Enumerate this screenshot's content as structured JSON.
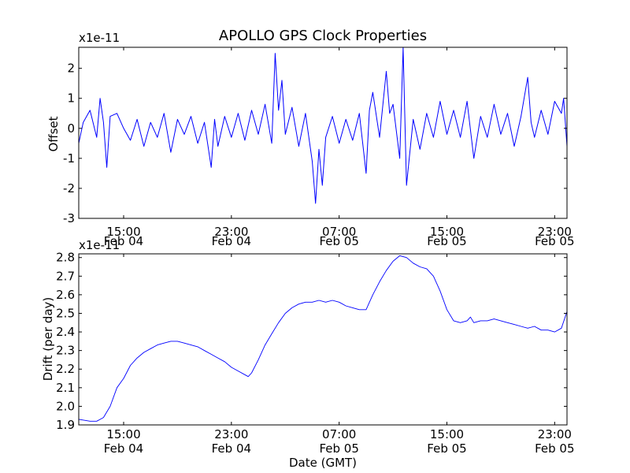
{
  "title": "APOLLO GPS Clock Properties",
  "xlabel": "Date (GMT)",
  "colors": {
    "series": "#0000ff",
    "axes": "#000000",
    "background": "#ffffff"
  },
  "chart_data": [
    {
      "type": "line",
      "title": "APOLLO GPS Clock Properties",
      "ylabel": "Offset",
      "multiplier_label": "x1e-11",
      "ylim": [
        -3,
        2.7
      ],
      "yticks": [
        {
          "value": -3,
          "label": "-3"
        },
        {
          "value": -2,
          "label": "-2"
        },
        {
          "value": -1,
          "label": "-1"
        },
        {
          "value": 0,
          "label": "0"
        },
        {
          "value": 1,
          "label": "1"
        },
        {
          "value": 2,
          "label": "2"
        }
      ],
      "xlim": [
        "Feb 04 11:40",
        "Feb 05 23:55"
      ],
      "xticks": [
        {
          "value": "Feb 04 15:00",
          "time": "15:00",
          "date": "Feb 04"
        },
        {
          "value": "Feb 04 23:00",
          "time": "23:00",
          "date": "Feb 04"
        },
        {
          "value": "Feb 05 07:00",
          "time": "07:00",
          "date": "Feb 05"
        },
        {
          "value": "Feb 05 15:00",
          "time": "15:00",
          "date": "Feb 05"
        },
        {
          "value": "Feb 05 23:00",
          "time": "23:00",
          "date": "Feb 05"
        }
      ],
      "series": [
        {
          "color": "#0000ff",
          "style": "dense noisy trace, values read off the plot",
          "points": [
            [
              "Feb 04 11:40",
              -0.5
            ],
            [
              "Feb 04 12:00",
              0.2
            ],
            [
              "Feb 04 12:30",
              0.6
            ],
            [
              "Feb 04 13:00",
              -0.3
            ],
            [
              "Feb 04 13:15",
              1.0
            ],
            [
              "Feb 04 13:30",
              0.2
            ],
            [
              "Feb 04 13:45",
              -1.3
            ],
            [
              "Feb 04 14:00",
              0.4
            ],
            [
              "Feb 04 14:30",
              0.5
            ],
            [
              "Feb 04 15:00",
              0.0
            ],
            [
              "Feb 04 15:30",
              -0.4
            ],
            [
              "Feb 04 16:00",
              0.3
            ],
            [
              "Feb 04 16:30",
              -0.6
            ],
            [
              "Feb 04 17:00",
              0.2
            ],
            [
              "Feb 04 17:30",
              -0.3
            ],
            [
              "Feb 04 18:00",
              0.5
            ],
            [
              "Feb 04 18:30",
              -0.8
            ],
            [
              "Feb 04 19:00",
              0.3
            ],
            [
              "Feb 04 19:30",
              -0.2
            ],
            [
              "Feb 04 20:00",
              0.4
            ],
            [
              "Feb 04 20:30",
              -0.5
            ],
            [
              "Feb 04 21:00",
              0.2
            ],
            [
              "Feb 04 21:30",
              -1.3
            ],
            [
              "Feb 04 21:45",
              0.3
            ],
            [
              "Feb 04 22:00",
              -0.6
            ],
            [
              "Feb 04 22:30",
              0.4
            ],
            [
              "Feb 04 23:00",
              -0.3
            ],
            [
              "Feb 04 23:30",
              0.5
            ],
            [
              "Feb 05 00:00",
              -0.4
            ],
            [
              "Feb 05 00:30",
              0.6
            ],
            [
              "Feb 05 01:00",
              -0.2
            ],
            [
              "Feb 05 01:30",
              0.8
            ],
            [
              "Feb 05 02:00",
              -0.5
            ],
            [
              "Feb 05 02:15",
              2.5
            ],
            [
              "Feb 05 02:30",
              0.6
            ],
            [
              "Feb 05 02:45",
              1.6
            ],
            [
              "Feb 05 03:00",
              -0.2
            ],
            [
              "Feb 05 03:30",
              0.7
            ],
            [
              "Feb 05 04:00",
              -0.6
            ],
            [
              "Feb 05 04:30",
              0.5
            ],
            [
              "Feb 05 05:00",
              -1.1
            ],
            [
              "Feb 05 05:15",
              -2.5
            ],
            [
              "Feb 05 05:30",
              -0.7
            ],
            [
              "Feb 05 05:45",
              -1.9
            ],
            [
              "Feb 05 06:00",
              -0.3
            ],
            [
              "Feb 05 06:30",
              0.4
            ],
            [
              "Feb 05 07:00",
              -0.5
            ],
            [
              "Feb 05 07:30",
              0.3
            ],
            [
              "Feb 05 08:00",
              -0.4
            ],
            [
              "Feb 05 08:30",
              0.5
            ],
            [
              "Feb 05 09:00",
              -1.5
            ],
            [
              "Feb 05 09:15",
              0.6
            ],
            [
              "Feb 05 09:30",
              1.2
            ],
            [
              "Feb 05 10:00",
              -0.3
            ],
            [
              "Feb 05 10:30",
              1.9
            ],
            [
              "Feb 05 10:45",
              0.5
            ],
            [
              "Feb 05 11:00",
              0.8
            ],
            [
              "Feb 05 11:30",
              -1.0
            ],
            [
              "Feb 05 11:45",
              2.7
            ],
            [
              "Feb 05 12:00",
              -1.9
            ],
            [
              "Feb 05 12:30",
              0.3
            ],
            [
              "Feb 05 13:00",
              -0.7
            ],
            [
              "Feb 05 13:30",
              0.5
            ],
            [
              "Feb 05 14:00",
              -0.3
            ],
            [
              "Feb 05 14:30",
              0.9
            ],
            [
              "Feb 05 15:00",
              -0.2
            ],
            [
              "Feb 05 15:30",
              0.6
            ],
            [
              "Feb 05 16:00",
              -0.3
            ],
            [
              "Feb 05 16:30",
              0.9
            ],
            [
              "Feb 05 17:00",
              -1.0
            ],
            [
              "Feb 05 17:30",
              0.4
            ],
            [
              "Feb 05 18:00",
              -0.3
            ],
            [
              "Feb 05 18:30",
              0.8
            ],
            [
              "Feb 05 19:00",
              -0.2
            ],
            [
              "Feb 05 19:30",
              0.5
            ],
            [
              "Feb 05 20:00",
              -0.6
            ],
            [
              "Feb 05 20:30",
              0.4
            ],
            [
              "Feb 05 21:00",
              1.7
            ],
            [
              "Feb 05 21:15",
              0.2
            ],
            [
              "Feb 05 21:30",
              -0.3
            ],
            [
              "Feb 05 22:00",
              0.6
            ],
            [
              "Feb 05 22:30",
              -0.2
            ],
            [
              "Feb 05 23:00",
              0.9
            ],
            [
              "Feb 05 23:30",
              0.5
            ],
            [
              "Feb 05 23:40",
              1.0
            ],
            [
              "Feb 05 23:55",
              -0.6
            ]
          ]
        }
      ]
    },
    {
      "type": "line",
      "ylabel": "Drift (per day)",
      "multiplier_label": "x1e-11",
      "ylim": [
        1.9,
        2.82
      ],
      "yticks": [
        {
          "value": 1.9,
          "label": "1.9"
        },
        {
          "value": 2.0,
          "label": "2.0"
        },
        {
          "value": 2.1,
          "label": "2.1"
        },
        {
          "value": 2.2,
          "label": "2.2"
        },
        {
          "value": 2.3,
          "label": "2.3"
        },
        {
          "value": 2.4,
          "label": "2.4"
        },
        {
          "value": 2.5,
          "label": "2.5"
        },
        {
          "value": 2.6,
          "label": "2.6"
        },
        {
          "value": 2.7,
          "label": "2.7"
        },
        {
          "value": 2.8,
          "label": "2.8"
        }
      ],
      "xlim": [
        "Feb 04 11:40",
        "Feb 05 23:55"
      ],
      "xticks": [
        {
          "value": "Feb 04 15:00",
          "time": "15:00",
          "date": "Feb 04"
        },
        {
          "value": "Feb 04 23:00",
          "time": "23:00",
          "date": "Feb 04"
        },
        {
          "value": "Feb 05 07:00",
          "time": "07:00",
          "date": "Feb 05"
        },
        {
          "value": "Feb 05 15:00",
          "time": "15:00",
          "date": "Feb 05"
        },
        {
          "value": "Feb 05 23:00",
          "time": "23:00",
          "date": "Feb 05"
        }
      ],
      "xlabel": "Date (GMT)",
      "series": [
        {
          "color": "#0000ff",
          "points": [
            [
              "Feb 04 11:40",
              1.93
            ],
            [
              "Feb 04 12:30",
              1.92
            ],
            [
              "Feb 04 13:00",
              1.92
            ],
            [
              "Feb 04 13:30",
              1.94
            ],
            [
              "Feb 04 14:00",
              2.0
            ],
            [
              "Feb 04 14:30",
              2.1
            ],
            [
              "Feb 04 15:00",
              2.15
            ],
            [
              "Feb 04 15:30",
              2.22
            ],
            [
              "Feb 04 16:00",
              2.26
            ],
            [
              "Feb 04 16:30",
              2.29
            ],
            [
              "Feb 04 17:00",
              2.31
            ],
            [
              "Feb 04 17:30",
              2.33
            ],
            [
              "Feb 04 18:00",
              2.34
            ],
            [
              "Feb 04 18:30",
              2.35
            ],
            [
              "Feb 04 19:00",
              2.35
            ],
            [
              "Feb 04 19:30",
              2.34
            ],
            [
              "Feb 04 20:00",
              2.33
            ],
            [
              "Feb 04 20:30",
              2.32
            ],
            [
              "Feb 04 21:00",
              2.3
            ],
            [
              "Feb 04 21:30",
              2.28
            ],
            [
              "Feb 04 22:00",
              2.26
            ],
            [
              "Feb 04 22:30",
              2.24
            ],
            [
              "Feb 04 23:00",
              2.21
            ],
            [
              "Feb 04 23:30",
              2.19
            ],
            [
              "Feb 05 00:00",
              2.17
            ],
            [
              "Feb 05 00:15",
              2.16
            ],
            [
              "Feb 05 00:30",
              2.18
            ],
            [
              "Feb 05 01:00",
              2.25
            ],
            [
              "Feb 05 01:30",
              2.33
            ],
            [
              "Feb 05 02:00",
              2.39
            ],
            [
              "Feb 05 02:30",
              2.45
            ],
            [
              "Feb 05 03:00",
              2.5
            ],
            [
              "Feb 05 03:30",
              2.53
            ],
            [
              "Feb 05 04:00",
              2.55
            ],
            [
              "Feb 05 04:30",
              2.56
            ],
            [
              "Feb 05 05:00",
              2.56
            ],
            [
              "Feb 05 05:30",
              2.57
            ],
            [
              "Feb 05 06:00",
              2.56
            ],
            [
              "Feb 05 06:30",
              2.57
            ],
            [
              "Feb 05 07:00",
              2.56
            ],
            [
              "Feb 05 07:30",
              2.54
            ],
            [
              "Feb 05 08:00",
              2.53
            ],
            [
              "Feb 05 08:30",
              2.52
            ],
            [
              "Feb 05 09:00",
              2.52
            ],
            [
              "Feb 05 09:30",
              2.6
            ],
            [
              "Feb 05 10:00",
              2.67
            ],
            [
              "Feb 05 10:30",
              2.73
            ],
            [
              "Feb 05 11:00",
              2.78
            ],
            [
              "Feb 05 11:30",
              2.81
            ],
            [
              "Feb 05 12:00",
              2.8
            ],
            [
              "Feb 05 12:30",
              2.77
            ],
            [
              "Feb 05 13:00",
              2.75
            ],
            [
              "Feb 05 13:30",
              2.74
            ],
            [
              "Feb 05 14:00",
              2.7
            ],
            [
              "Feb 05 14:30",
              2.62
            ],
            [
              "Feb 05 15:00",
              2.52
            ],
            [
              "Feb 05 15:30",
              2.46
            ],
            [
              "Feb 05 16:00",
              2.45
            ],
            [
              "Feb 05 16:30",
              2.46
            ],
            [
              "Feb 05 16:45",
              2.48
            ],
            [
              "Feb 05 17:00",
              2.45
            ],
            [
              "Feb 05 17:30",
              2.46
            ],
            [
              "Feb 05 18:00",
              2.46
            ],
            [
              "Feb 05 18:30",
              2.47
            ],
            [
              "Feb 05 19:00",
              2.46
            ],
            [
              "Feb 05 19:30",
              2.45
            ],
            [
              "Feb 05 20:00",
              2.44
            ],
            [
              "Feb 05 20:30",
              2.43
            ],
            [
              "Feb 05 21:00",
              2.42
            ],
            [
              "Feb 05 21:30",
              2.43
            ],
            [
              "Feb 05 22:00",
              2.41
            ],
            [
              "Feb 05 22:30",
              2.41
            ],
            [
              "Feb 05 23:00",
              2.4
            ],
            [
              "Feb 05 23:30",
              2.42
            ],
            [
              "Feb 05 23:55",
              2.51
            ]
          ]
        }
      ]
    }
  ]
}
